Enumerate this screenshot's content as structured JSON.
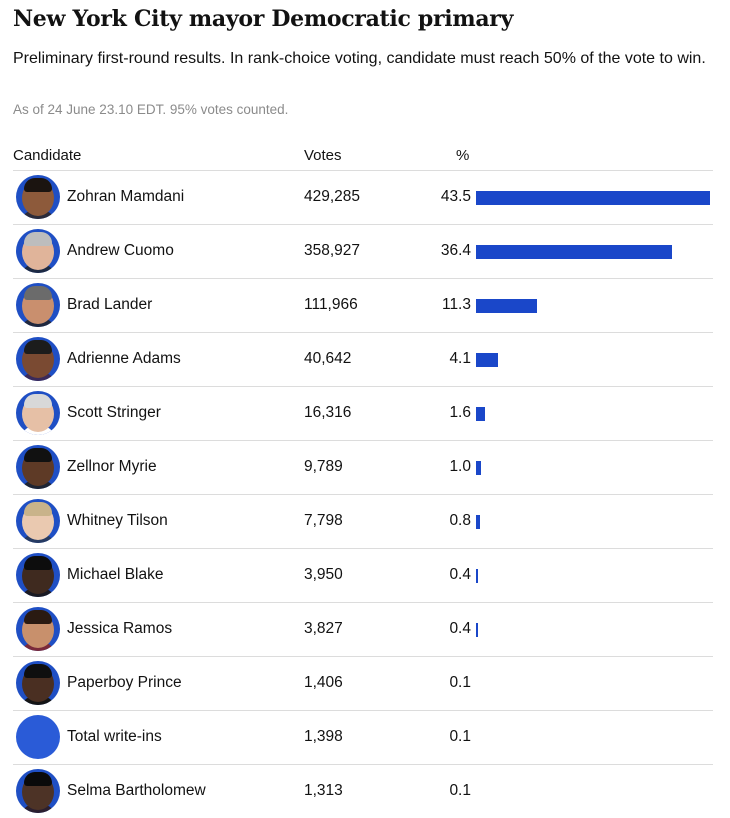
{
  "title": "New York City mayor Democratic primary",
  "subtitle": "Preliminary first-round results. In rank-choice voting, candidate must reach 50% of the vote to win.",
  "as_of": "As of 24 June 23.10 EDT. 95% votes counted.",
  "columns": {
    "candidate": "Candidate",
    "votes": "Votes",
    "pct": "%"
  },
  "colors": {
    "bar": "#1a47c9",
    "avatar_ring": "#1f4fc4",
    "divider": "#dcdcdc",
    "muted": "#8b8b8b"
  },
  "chart_data": {
    "type": "table",
    "title": "New York City mayor Democratic primary",
    "pct_max": 43.5,
    "rows": [
      {
        "candidate": "Zohran Mamdani",
        "votes": "429,285",
        "pct": 43.5,
        "pct_label": "43.5",
        "avatar": "photo-avatar"
      },
      {
        "candidate": "Andrew Cuomo",
        "votes": "358,927",
        "pct": 36.4,
        "pct_label": "36.4",
        "avatar": "photo-avatar"
      },
      {
        "candidate": "Brad Lander",
        "votes": "111,966",
        "pct": 11.3,
        "pct_label": "11.3",
        "avatar": "photo-avatar"
      },
      {
        "candidate": "Adrienne Adams",
        "votes": "40,642",
        "pct": 4.1,
        "pct_label": "4.1",
        "avatar": "photo-avatar"
      },
      {
        "candidate": "Scott Stringer",
        "votes": "16,316",
        "pct": 1.6,
        "pct_label": "1.6",
        "avatar": "photo-avatar"
      },
      {
        "candidate": "Zellnor Myrie",
        "votes": "9,789",
        "pct": 1.0,
        "pct_label": "1.0",
        "avatar": "photo-avatar"
      },
      {
        "candidate": "Whitney Tilson",
        "votes": "7,798",
        "pct": 0.8,
        "pct_label": "0.8",
        "avatar": "photo-avatar"
      },
      {
        "candidate": "Michael Blake",
        "votes": "3,950",
        "pct": 0.4,
        "pct_label": "0.4",
        "avatar": "photo-avatar"
      },
      {
        "candidate": "Jessica Ramos",
        "votes": "3,827",
        "pct": 0.4,
        "pct_label": "0.4",
        "avatar": "photo-avatar"
      },
      {
        "candidate": "Paperboy Prince",
        "votes": "1,406",
        "pct": 0.1,
        "pct_label": "0.1",
        "avatar": "photo-avatar"
      },
      {
        "candidate": "Total write-ins",
        "votes": "1,398",
        "pct": 0.1,
        "pct_label": "0.1",
        "avatar": "placeholder-avatar"
      },
      {
        "candidate": "Selma Bartholomew",
        "votes": "1,313",
        "pct": 0.1,
        "pct_label": "0.1",
        "avatar": "photo-avatar"
      }
    ]
  }
}
